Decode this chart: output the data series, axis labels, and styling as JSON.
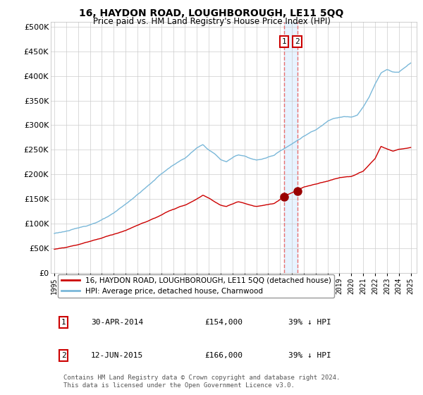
{
  "title": "16, HAYDON ROAD, LOUGHBOROUGH, LE11 5QQ",
  "subtitle": "Price paid vs. HM Land Registry's House Price Index (HPI)",
  "ylabel_ticks": [
    "£0",
    "£50K",
    "£100K",
    "£150K",
    "£200K",
    "£250K",
    "£300K",
    "£350K",
    "£400K",
    "£450K",
    "£500K"
  ],
  "ytick_values": [
    0,
    50000,
    100000,
    150000,
    200000,
    250000,
    300000,
    350000,
    400000,
    450000,
    500000
  ],
  "ylim": [
    0,
    510000
  ],
  "xlim_start": 1994.7,
  "xlim_end": 2025.5,
  "hpi_color": "#7ab8d9",
  "price_color": "#cc0000",
  "marker_color": "#990000",
  "dashed_line_color": "#e87070",
  "fill_color": "#ddeeff",
  "transaction1_date": "30-APR-2014",
  "transaction1_price": 154000,
  "transaction1_pct": "39%",
  "transaction1_year": 2014.33,
  "transaction2_date": "12-JUN-2015",
  "transaction2_price": 166000,
  "transaction2_pct": "39%",
  "transaction2_year": 2015.45,
  "legend_label_price": "16, HAYDON ROAD, LOUGHBOROUGH, LE11 5QQ (detached house)",
  "legend_label_hpi": "HPI: Average price, detached house, Charnwood",
  "footer": "Contains HM Land Registry data © Crown copyright and database right 2024.\nThis data is licensed under the Open Government Licence v3.0.",
  "xtick_years": [
    1995,
    1996,
    1997,
    1998,
    1999,
    2000,
    2001,
    2002,
    2003,
    2004,
    2005,
    2006,
    2007,
    2008,
    2009,
    2010,
    2011,
    2012,
    2013,
    2014,
    2015,
    2016,
    2017,
    2018,
    2019,
    2020,
    2021,
    2022,
    2023,
    2024,
    2025
  ],
  "background_color": "#ffffff",
  "grid_color": "#cccccc",
  "hpi_anchors_x": [
    1995.0,
    1996.0,
    1997.0,
    1998.0,
    1999.0,
    2000.0,
    2001.0,
    2002.0,
    2003.0,
    2004.0,
    2005.0,
    2006.0,
    2007.0,
    2007.5,
    2008.0,
    2008.5,
    2009.0,
    2009.5,
    2010.0,
    2010.5,
    2011.0,
    2011.5,
    2012.0,
    2012.5,
    2013.0,
    2013.5,
    2014.0,
    2014.5,
    2015.0,
    2015.5,
    2016.0,
    2016.5,
    2017.0,
    2017.5,
    2018.0,
    2018.5,
    2019.0,
    2019.5,
    2020.0,
    2020.5,
    2021.0,
    2021.5,
    2022.0,
    2022.5,
    2023.0,
    2023.5,
    2024.0,
    2024.5,
    2025.0
  ],
  "hpi_anchors_y": [
    80000,
    85000,
    90000,
    98000,
    108000,
    120000,
    138000,
    158000,
    178000,
    200000,
    218000,
    232000,
    252000,
    258000,
    248000,
    240000,
    228000,
    224000,
    232000,
    238000,
    236000,
    232000,
    228000,
    230000,
    234000,
    238000,
    248000,
    255000,
    262000,
    270000,
    278000,
    285000,
    290000,
    298000,
    308000,
    315000,
    318000,
    320000,
    318000,
    322000,
    338000,
    358000,
    385000,
    408000,
    415000,
    410000,
    410000,
    420000,
    430000
  ],
  "price_anchors_x": [
    1995.0,
    1996.0,
    1997.0,
    1998.0,
    1999.0,
    2000.0,
    2001.0,
    2002.0,
    2003.0,
    2004.0,
    2005.0,
    2006.0,
    2007.0,
    2007.5,
    2008.0,
    2008.5,
    2009.0,
    2009.5,
    2010.0,
    2010.5,
    2011.0,
    2011.5,
    2012.0,
    2013.0,
    2013.5,
    2014.0,
    2014.33,
    2015.45,
    2016.0,
    2017.0,
    2018.0,
    2019.0,
    2020.0,
    2021.0,
    2022.0,
    2022.5,
    2023.0,
    2023.5,
    2024.0,
    2024.5,
    2025.0
  ],
  "price_anchors_y": [
    48000,
    52000,
    58000,
    65000,
    72000,
    80000,
    88000,
    98000,
    108000,
    118000,
    130000,
    138000,
    150000,
    158000,
    152000,
    145000,
    138000,
    135000,
    140000,
    145000,
    142000,
    138000,
    135000,
    138000,
    140000,
    148000,
    154000,
    166000,
    172000,
    178000,
    185000,
    192000,
    195000,
    205000,
    230000,
    255000,
    250000,
    245000,
    248000,
    250000,
    252000
  ]
}
